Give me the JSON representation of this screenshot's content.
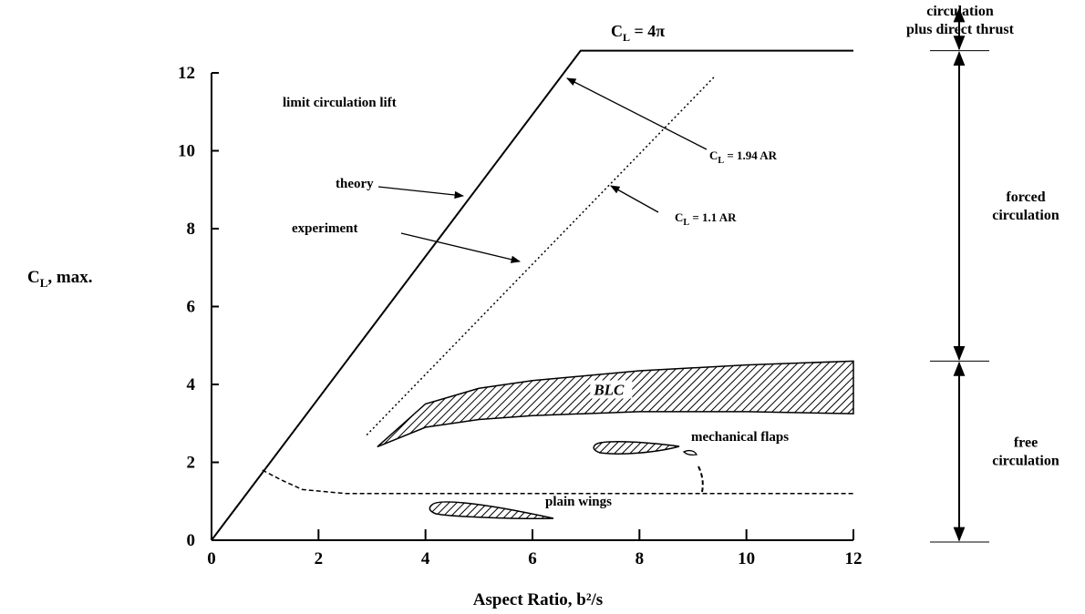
{
  "chart_data": {
    "type": "line",
    "y_label": [
      "C",
      "L",
      ", max."
    ],
    "x_label": "Aspect Ratio, b²/s",
    "xlim": [
      0,
      12
    ],
    "ylim": [
      0,
      12
    ],
    "xticks": [
      0,
      2,
      4,
      6,
      8,
      10,
      12
    ],
    "yticks": [
      0,
      2,
      4,
      6,
      8,
      10,
      12
    ],
    "color": "#000000",
    "series": [
      {
        "name": "theory",
        "style": "solid",
        "x": [
          0,
          6.9,
          12
        ],
        "values": [
          0,
          12.57,
          12.57
        ]
      },
      {
        "name": "experiment",
        "style": "dotted",
        "x": [
          2.9,
          9.4
        ],
        "values": [
          2.7,
          11.9
        ]
      },
      {
        "name": "plain wings",
        "style": "dashed",
        "x": [
          0.95,
          1.3,
          1.7,
          2.5,
          12
        ],
        "values": [
          1.8,
          1.55,
          1.3,
          1.2,
          1.2
        ]
      },
      {
        "name": "BLC",
        "style": "hatched",
        "x": [
          3.1,
          4,
          5,
          6,
          8,
          10,
          12
        ],
        "values": [
          2.4,
          2.9,
          3.1,
          3.2,
          3.3,
          3.3,
          3.25
        ],
        "upper": [
          2.4,
          3.5,
          3.9,
          4.1,
          4.35,
          4.5,
          4.6
        ]
      }
    ],
    "annotations": {
      "limit": "limit circulation lift",
      "cl_4pi": [
        "C",
        "L",
        " = 4π"
      ],
      "cl_194": [
        "C",
        "L",
        " = 1.94 AR"
      ],
      "cl_11": [
        "C",
        "L",
        " = 1.1 AR"
      ],
      "flaps": "mechanical flaps"
    },
    "regions": {
      "bounds": [
        12.57,
        4.6,
        0
      ],
      "labels": [
        [
          "circulation",
          "plus direct thrust"
        ],
        [
          "forced",
          "circulation"
        ],
        [
          "free",
          "circulation"
        ]
      ]
    }
  }
}
